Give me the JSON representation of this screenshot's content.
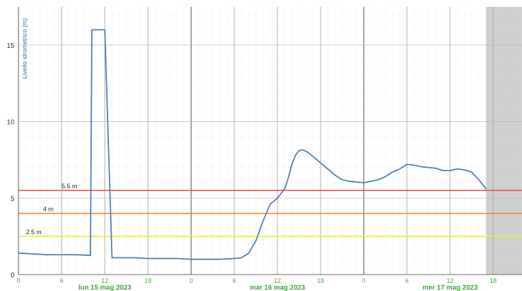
{
  "chart_data": {
    "type": "line",
    "ylabel": "Livello idrometrico (m)",
    "ylim": [
      0,
      17.5
    ],
    "yticks": [
      0,
      5,
      10,
      15
    ],
    "xlim_hours": [
      0,
      70
    ],
    "xticks": [
      {
        "h": 0,
        "label": "0"
      },
      {
        "h": 6,
        "label": "6"
      },
      {
        "h": 12,
        "label": "12"
      },
      {
        "h": 18,
        "label": "18"
      },
      {
        "h": 24,
        "label": "0"
      },
      {
        "h": 30,
        "label": "6"
      },
      {
        "h": 36,
        "label": "12"
      },
      {
        "h": 42,
        "label": "18"
      },
      {
        "h": 48,
        "label": "0"
      },
      {
        "h": 54,
        "label": "6"
      },
      {
        "h": 60,
        "label": "12"
      },
      {
        "h": 66,
        "label": "18"
      }
    ],
    "day_labels": [
      {
        "h": 12,
        "label": "lun 15 mag 2023"
      },
      {
        "h": 36,
        "label": "mar 16 mag 2023"
      },
      {
        "h": 60,
        "label": "mer 17 mag 2023"
      }
    ],
    "grid": true,
    "thresholds": [
      {
        "value": 5.5,
        "label": "5.5 m",
        "color": "#e0464a"
      },
      {
        "value": 4,
        "label": "4 m",
        "color": "#f07d28"
      },
      {
        "value": 2.5,
        "label": "2.5 m",
        "color": "#eeee22"
      }
    ],
    "forecast_shade_start_hour": 65,
    "series": [
      {
        "color": "#4a7fb0",
        "x": [
          0,
          2,
          4,
          6,
          8,
          10,
          10.2,
          11.5,
          12,
          13,
          13.2,
          14,
          16,
          18,
          20,
          22,
          24,
          26,
          28,
          30,
          31,
          32,
          33,
          34,
          35,
          36,
          37,
          37.5,
          38,
          38.5,
          39,
          39.5,
          40,
          40.5,
          41,
          41.5,
          42,
          43,
          44,
          45,
          46,
          47,
          48,
          49,
          50,
          51,
          52,
          53,
          54,
          55,
          56,
          57,
          58,
          59,
          60,
          61,
          62,
          63,
          64,
          65
        ],
        "values": [
          1.4,
          1.35,
          1.3,
          1.3,
          1.3,
          1.25,
          16,
          16,
          16,
          1.1,
          1.1,
          1.1,
          1.1,
          1.05,
          1.05,
          1.05,
          1.0,
          1.0,
          1.0,
          1.05,
          1.1,
          1.4,
          2.2,
          3.5,
          4.6,
          5.0,
          5.6,
          6.3,
          7.2,
          7.8,
          8.1,
          8.15,
          8.05,
          7.9,
          7.7,
          7.5,
          7.3,
          6.9,
          6.5,
          6.2,
          6.1,
          6.05,
          6.0,
          6.1,
          6.2,
          6.4,
          6.7,
          6.9,
          7.2,
          7.15,
          7.05,
          7.0,
          6.95,
          6.8,
          6.8,
          6.9,
          6.85,
          6.7,
          6.2,
          5.6
        ]
      }
    ]
  }
}
